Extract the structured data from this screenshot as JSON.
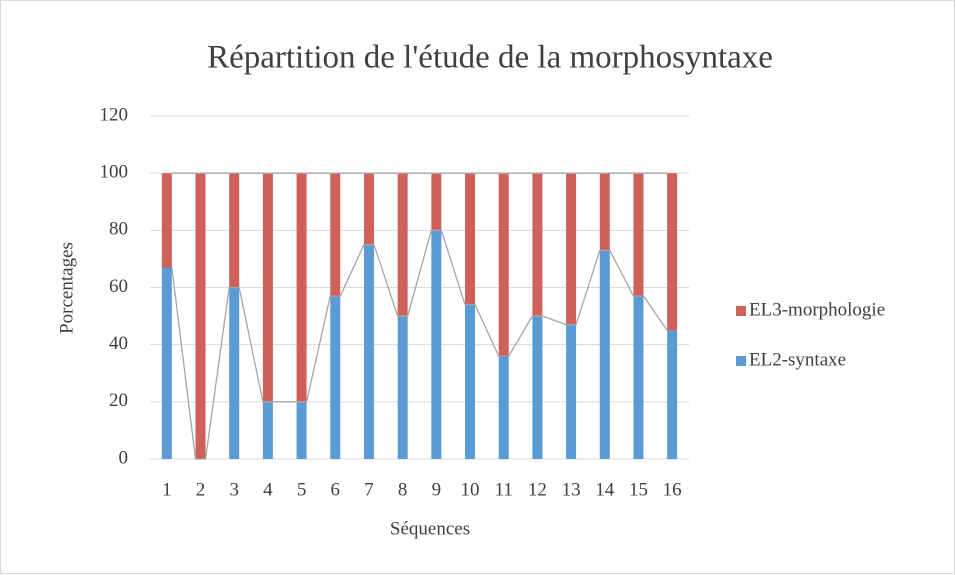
{
  "chart_data": {
    "type": "stacked_bar",
    "title": "Répartition de l'étude de la morphosyntaxe",
    "x_label": "Séquences",
    "y_label": "Porcentages",
    "categories": [
      "1",
      "2",
      "3",
      "4",
      "5",
      "6",
      "7",
      "8",
      "9",
      "10",
      "11",
      "12",
      "13",
      "14",
      "15",
      "16"
    ],
    "series": [
      {
        "name": "EL2-syntaxe",
        "color": "#5b9bd5",
        "values": [
          67,
          0,
          60,
          20,
          20,
          57,
          75,
          50,
          80,
          54,
          36,
          50,
          47,
          73,
          57,
          45
        ]
      },
      {
        "name": "EL3-morphologie",
        "color": "#d0605a",
        "values": [
          33,
          100,
          40,
          80,
          80,
          43,
          25,
          50,
          20,
          46,
          64,
          50,
          53,
          27,
          43,
          55
        ]
      }
    ],
    "ylim": [
      0,
      120
    ],
    "yticks": [
      0,
      20,
      40,
      60,
      80,
      100,
      120
    ],
    "grid": true,
    "series_lines": true,
    "legend": "right"
  }
}
